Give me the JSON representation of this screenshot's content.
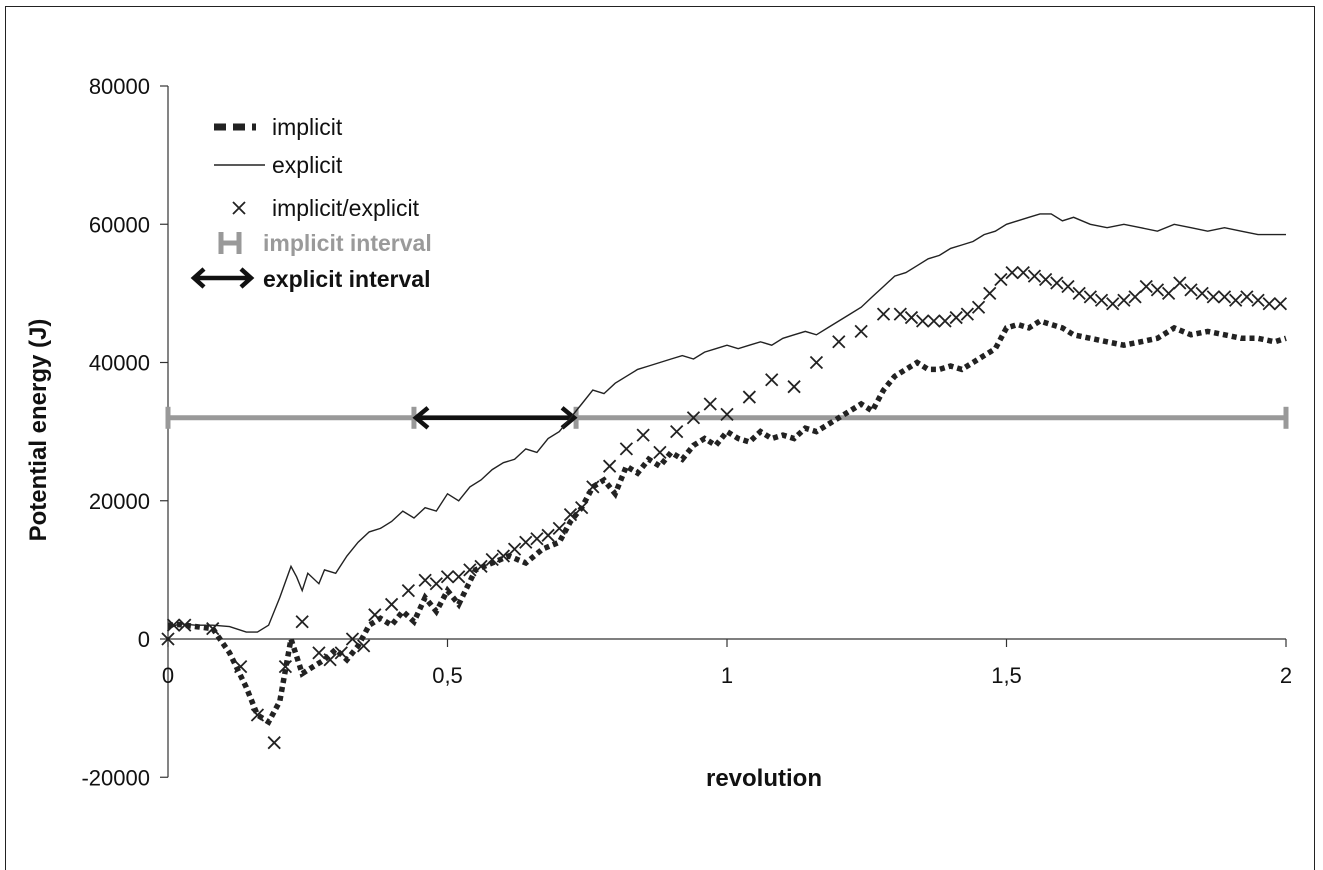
{
  "chart_data": {
    "type": "line",
    "title": "",
    "xlabel": "revolution",
    "ylabel": "Potential energy (J)",
    "xlim": [
      0,
      2
    ],
    "ylim": [
      -20000,
      80000
    ],
    "x_ticks": [
      "0",
      "0,5",
      "1",
      "1,5",
      "2"
    ],
    "x_tick_values": [
      0,
      0.5,
      1,
      1.5,
      2
    ],
    "y_ticks": [
      "-20000",
      "0",
      "20000",
      "40000",
      "60000",
      "80000"
    ],
    "y_tick_values": [
      -20000,
      0,
      20000,
      40000,
      60000,
      80000
    ],
    "grid": false,
    "legend_position": "top-left",
    "series": [
      {
        "name": "implicit",
        "style": "dashed",
        "color": "#222222",
        "x": [
          0,
          0.02,
          0.05,
          0.08,
          0.11,
          0.14,
          0.16,
          0.18,
          0.2,
          0.22,
          0.24,
          0.26,
          0.28,
          0.3,
          0.32,
          0.34,
          0.36,
          0.38,
          0.4,
          0.42,
          0.44,
          0.46,
          0.48,
          0.5,
          0.52,
          0.55,
          0.58,
          0.61,
          0.64,
          0.67,
          0.7,
          0.72,
          0.74,
          0.76,
          0.78,
          0.8,
          0.82,
          0.84,
          0.86,
          0.88,
          0.9,
          0.92,
          0.94,
          0.96,
          0.98,
          1.0,
          1.02,
          1.04,
          1.06,
          1.08,
          1.1,
          1.12,
          1.14,
          1.16,
          1.18,
          1.2,
          1.22,
          1.24,
          1.26,
          1.28,
          1.3,
          1.32,
          1.34,
          1.36,
          1.38,
          1.4,
          1.42,
          1.44,
          1.46,
          1.48,
          1.5,
          1.52,
          1.54,
          1.56,
          1.58,
          1.6,
          1.62,
          1.65,
          1.68,
          1.71,
          1.74,
          1.77,
          1.8,
          1.83,
          1.86,
          1.89,
          1.92,
          1.95,
          1.98,
          2.0
        ],
        "values": [
          2000,
          2100,
          1800,
          1500,
          -2000,
          -7000,
          -11000,
          -12000,
          -9000,
          0,
          -5000,
          -4000,
          -3000,
          -1500,
          -3000,
          -1000,
          2000,
          3000,
          2000,
          4000,
          2500,
          6000,
          4000,
          7000,
          5000,
          10000,
          11000,
          12000,
          11000,
          13000,
          14000,
          17000,
          19000,
          22000,
          23000,
          21000,
          25000,
          24000,
          26000,
          25000,
          27000,
          26000,
          28000,
          29000,
          28000,
          30000,
          29000,
          28500,
          30000,
          29000,
          29500,
          29000,
          30500,
          30000,
          31000,
          32000,
          33000,
          34000,
          33000,
          36000,
          38000,
          39000,
          40000,
          39000,
          39000,
          39500,
          39000,
          40000,
          41000,
          42000,
          45000,
          45500,
          45000,
          46000,
          45500,
          45000,
          44000,
          43500,
          43000,
          42500,
          43000,
          43500,
          45000,
          44000,
          44500,
          44000,
          43500,
          43500,
          43000,
          43500
        ]
      },
      {
        "name": "explicit",
        "style": "solid",
        "color": "#222222",
        "x": [
          0,
          0.02,
          0.05,
          0.08,
          0.11,
          0.14,
          0.16,
          0.18,
          0.2,
          0.22,
          0.23,
          0.24,
          0.25,
          0.27,
          0.28,
          0.3,
          0.32,
          0.34,
          0.36,
          0.38,
          0.4,
          0.42,
          0.44,
          0.46,
          0.48,
          0.5,
          0.52,
          0.54,
          0.56,
          0.58,
          0.6,
          0.62,
          0.64,
          0.66,
          0.68,
          0.7,
          0.72,
          0.74,
          0.76,
          0.78,
          0.8,
          0.82,
          0.84,
          0.86,
          0.88,
          0.9,
          0.92,
          0.94,
          0.96,
          0.98,
          1.0,
          1.02,
          1.04,
          1.06,
          1.08,
          1.1,
          1.12,
          1.14,
          1.16,
          1.18,
          1.2,
          1.22,
          1.24,
          1.26,
          1.28,
          1.3,
          1.32,
          1.34,
          1.36,
          1.38,
          1.4,
          1.42,
          1.44,
          1.46,
          1.48,
          1.5,
          1.52,
          1.54,
          1.56,
          1.58,
          1.6,
          1.62,
          1.65,
          1.68,
          1.71,
          1.74,
          1.77,
          1.8,
          1.83,
          1.86,
          1.89,
          1.92,
          1.95,
          1.98,
          2.0
        ],
        "values": [
          1500,
          2200,
          2000,
          2000,
          1800,
          1000,
          1000,
          2000,
          6000,
          10500,
          9000,
          7000,
          9500,
          8000,
          10000,
          9500,
          12000,
          14000,
          15500,
          16000,
          17000,
          18500,
          17500,
          19000,
          18500,
          21000,
          20000,
          22000,
          23000,
          24500,
          25500,
          26000,
          27500,
          27000,
          29000,
          30000,
          32000,
          34000,
          36000,
          35500,
          37000,
          38000,
          39000,
          39500,
          40000,
          40500,
          41000,
          40500,
          41500,
          42000,
          42500,
          42000,
          42500,
          43000,
          42500,
          43500,
          44000,
          44500,
          44000,
          45000,
          46000,
          47000,
          48000,
          49500,
          51000,
          52500,
          53000,
          54000,
          55000,
          55500,
          56500,
          57000,
          57500,
          58500,
          59000,
          60000,
          60500,
          61000,
          61500,
          61500,
          60500,
          61000,
          60000,
          59500,
          60000,
          59500,
          59000,
          60000,
          59500,
          59000,
          59500,
          59000,
          58500,
          58500,
          58500
        ]
      },
      {
        "name": "implicit/explicit",
        "style": "x-markers",
        "color": "#222222",
        "x": [
          0,
          0.01,
          0.03,
          0.08,
          0.13,
          0.16,
          0.19,
          0.21,
          0.24,
          0.27,
          0.29,
          0.31,
          0.33,
          0.35,
          0.37,
          0.4,
          0.43,
          0.46,
          0.48,
          0.5,
          0.52,
          0.54,
          0.56,
          0.58,
          0.6,
          0.62,
          0.64,
          0.66,
          0.68,
          0.7,
          0.72,
          0.74,
          0.76,
          0.79,
          0.82,
          0.85,
          0.88,
          0.91,
          0.94,
          0.97,
          1.0,
          1.04,
          1.08,
          1.12,
          1.16,
          1.2,
          1.24,
          1.28,
          1.31,
          1.33,
          1.35,
          1.37,
          1.39,
          1.41,
          1.43,
          1.45,
          1.47,
          1.49,
          1.51,
          1.53,
          1.55,
          1.57,
          1.59,
          1.61,
          1.63,
          1.65,
          1.67,
          1.69,
          1.71,
          1.73,
          1.75,
          1.77,
          1.79,
          1.81,
          1.83,
          1.85,
          1.87,
          1.89,
          1.91,
          1.93,
          1.95,
          1.97,
          1.99
        ],
        "values": [
          0,
          2000,
          2000,
          1500,
          -4000,
          -11000,
          -15000,
          -4000,
          2500,
          -2000,
          -3000,
          -2000,
          0,
          -1000,
          3500,
          5000,
          7000,
          8500,
          8000,
          9000,
          9000,
          10000,
          10500,
          11500,
          12000,
          13000,
          14000,
          14500,
          15000,
          16000,
          18000,
          19000,
          22000,
          25000,
          27500,
          29500,
          27000,
          30000,
          32000,
          34000,
          32500,
          35000,
          37500,
          36500,
          40000,
          43000,
          44500,
          47000,
          47000,
          46500,
          46000,
          46000,
          46000,
          46500,
          47000,
          48000,
          50000,
          52000,
          53000,
          53000,
          52500,
          52000,
          51500,
          51000,
          50000,
          49500,
          49000,
          48500,
          49000,
          49500,
          51000,
          50500,
          50000,
          51500,
          50500,
          50000,
          49500,
          49500,
          49000,
          49500,
          49000,
          48500,
          48500
        ]
      }
    ],
    "intervals": [
      {
        "name": "implicit interval",
        "color": "#999999",
        "y": 32000,
        "x_start": 0,
        "x_end": 2,
        "marker_x": [
          0,
          0.44,
          0.73,
          2
        ]
      },
      {
        "name": "explicit interval",
        "color": "#111111",
        "y": 32000,
        "x_start": 0.44,
        "x_end": 0.73
      }
    ],
    "legend": [
      {
        "label": "implicit",
        "symbol": "dashed"
      },
      {
        "label": "explicit",
        "symbol": "solid"
      },
      {
        "label": "implicit/explicit",
        "symbol": "x"
      },
      {
        "label": "implicit interval",
        "symbol": "gray-H"
      },
      {
        "label": "explicit interval",
        "symbol": "double-arrow"
      }
    ]
  }
}
